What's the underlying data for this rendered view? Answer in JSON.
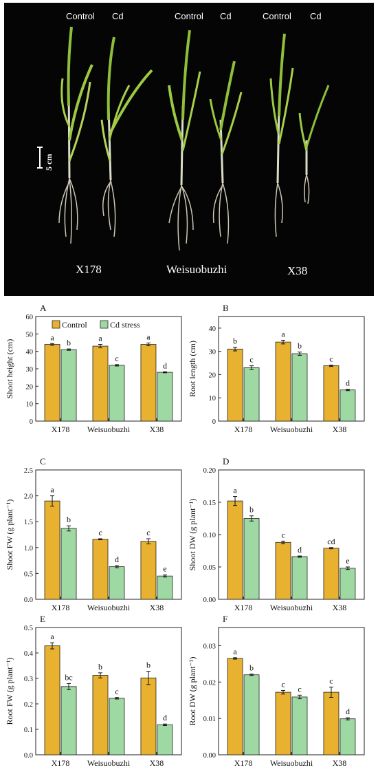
{
  "photo": {
    "labels": [
      "Control",
      "Cd",
      "Control",
      "Cd",
      "Control",
      "Cd"
    ],
    "varieties": [
      "X178",
      "Weisuobuzhi",
      "X38"
    ],
    "scale_bar": "5 cm"
  },
  "colors": {
    "control": "#E8B130",
    "cd": "#9ED8A2"
  },
  "legend": {
    "control": "Control",
    "cd": "Cd stress"
  },
  "chart_data": [
    {
      "panel": "A",
      "type": "bar",
      "categories": [
        "X178",
        "Weisuobuzhi",
        "X38"
      ],
      "ylabel": "Shoot height (cm)",
      "ylim": [
        0,
        60
      ],
      "yticks": [
        "0",
        "10",
        "20",
        "30",
        "40",
        "50",
        "60"
      ],
      "legend": true,
      "series": [
        {
          "name": "Control",
          "values": [
            44,
            43,
            44
          ],
          "errors": [
            0.5,
            1.0,
            0.8
          ],
          "letters": [
            "a",
            "a",
            "a"
          ]
        },
        {
          "name": "Cd stress",
          "values": [
            41,
            32,
            28
          ],
          "errors": [
            0.4,
            0.4,
            0.3
          ],
          "letters": [
            "b",
            "c",
            "d"
          ]
        }
      ]
    },
    {
      "panel": "B",
      "type": "bar",
      "categories": [
        "X178",
        "Weisuobuzhi",
        "X38"
      ],
      "ylabel": "Root length (cm)",
      "ylim": [
        0,
        45
      ],
      "yticks": [
        "0",
        "10",
        "20",
        "30",
        "40"
      ],
      "series": [
        {
          "values": [
            31,
            34,
            23.8
          ],
          "errors": [
            0.8,
            0.8,
            0.3
          ],
          "letters": [
            "b",
            "a",
            "c"
          ]
        },
        {
          "values": [
            23,
            29,
            13.4
          ],
          "errors": [
            0.8,
            0.7,
            0.3
          ],
          "letters": [
            "c",
            "b",
            "d"
          ]
        }
      ]
    },
    {
      "panel": "C",
      "type": "bar",
      "categories": [
        "X178",
        "Weisuobuzhi",
        "X38"
      ],
      "ylabel": "Shoot FW (g plant⁻¹)",
      "ylim": [
        0,
        2.5
      ],
      "yticks": [
        "0.0",
        "0.5",
        "1.0",
        "1.5",
        "2.0",
        "2.5"
      ],
      "series": [
        {
          "values": [
            1.9,
            1.16,
            1.12
          ],
          "errors": [
            0.1,
            0.01,
            0.05
          ],
          "letters": [
            "a",
            "c",
            "c"
          ]
        },
        {
          "values": [
            1.37,
            0.63,
            0.45
          ],
          "errors": [
            0.05,
            0.02,
            0.02
          ],
          "letters": [
            "b",
            "d",
            "e"
          ]
        }
      ]
    },
    {
      "panel": "D",
      "type": "bar",
      "categories": [
        "X178",
        "Weisuobuzhi",
        "X38"
      ],
      "ylabel": "Shoot DW (g plant⁻¹)",
      "ylim": [
        0,
        0.2
      ],
      "yticks": [
        "0.00",
        "0.05",
        "0.10",
        "0.15",
        "0.20"
      ],
      "series": [
        {
          "values": [
            0.152,
            0.088,
            0.079
          ],
          "errors": [
            0.007,
            0.002,
            0.001
          ],
          "letters": [
            "a",
            "c",
            "cd"
          ]
        },
        {
          "values": [
            0.125,
            0.066,
            0.048
          ],
          "errors": [
            0.004,
            0.001,
            0.002
          ],
          "letters": [
            "b",
            "d",
            "e"
          ]
        }
      ]
    },
    {
      "panel": "E",
      "type": "bar",
      "categories": [
        "X178",
        "Weisuobuzhi",
        "X38"
      ],
      "ylabel": "Root FW (g plant⁻¹)",
      "ylim": [
        0,
        0.5
      ],
      "yticks": [
        "0.0",
        "0.1",
        "0.2",
        "0.3",
        "0.4",
        "0.5"
      ],
      "series": [
        {
          "values": [
            0.428,
            0.312,
            0.302
          ],
          "errors": [
            0.012,
            0.01,
            0.026
          ],
          "letters": [
            "a",
            "b",
            "b"
          ]
        },
        {
          "values": [
            0.268,
            0.222,
            0.118
          ],
          "errors": [
            0.012,
            0.003,
            0.003
          ],
          "letters": [
            "bc",
            "c",
            "d"
          ]
        }
      ]
    },
    {
      "panel": "F",
      "type": "bar",
      "categories": [
        "X178",
        "Weisuobuzhi",
        "X38"
      ],
      "ylabel": "Root DW (g plant⁻¹)",
      "ylim": [
        0,
        0.035
      ],
      "yticks": [
        "0.00",
        "0.01",
        "0.02",
        "0.03"
      ],
      "series": [
        {
          "values": [
            0.0265,
            0.0172,
            0.0172
          ],
          "errors": [
            0.0002,
            0.0005,
            0.0014
          ],
          "letters": [
            "a",
            "c",
            "c"
          ]
        },
        {
          "values": [
            0.022,
            0.0159,
            0.0099
          ],
          "errors": [
            0.0002,
            0.0005,
            0.0003
          ],
          "letters": [
            "b",
            "c",
            "d"
          ]
        }
      ]
    }
  ]
}
